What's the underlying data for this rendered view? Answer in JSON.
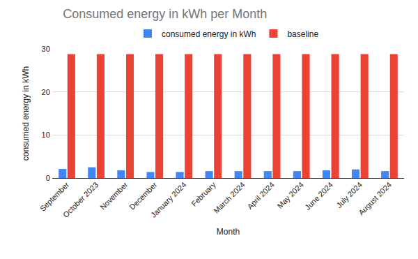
{
  "chart_data": {
    "type": "bar",
    "title": "Consumed energy in kWh per Month",
    "x_label": "Month",
    "y_label": "consumed energy in kWh",
    "categories": [
      "September",
      "October 2023",
      "November",
      "December",
      "January 2024",
      "February",
      "March 2024",
      "April 2024",
      "May 2024",
      "June 2024",
      "July 2024",
      "August 2024"
    ],
    "series": [
      {
        "name": "consumed energy in kWh",
        "color": "#4285f4",
        "values": [
          2.1,
          2.5,
          1.8,
          1.4,
          1.4,
          1.6,
          1.6,
          1.6,
          1.6,
          1.8,
          2.0,
          1.6
        ]
      },
      {
        "name": "baseline",
        "color": "#ea4335",
        "values": [
          28.8,
          28.8,
          28.8,
          28.8,
          28.8,
          28.8,
          28.8,
          28.8,
          28.8,
          28.8,
          28.8,
          28.8
        ]
      }
    ],
    "ylim": [
      0,
      30
    ],
    "yticks": [
      0,
      10,
      20,
      30
    ],
    "grid": true,
    "legend": "top"
  }
}
